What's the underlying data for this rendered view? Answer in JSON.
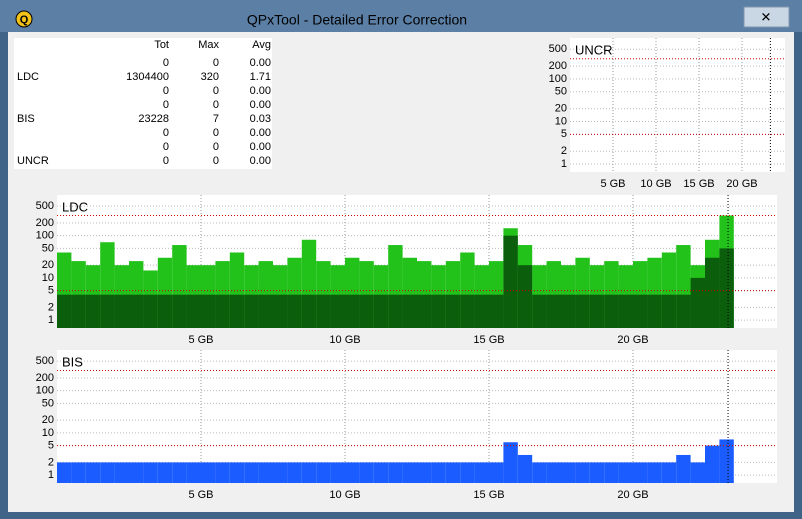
{
  "window": {
    "title": "QPxTool - Detailed Error Correction",
    "close": "✕",
    "icon": "Q"
  },
  "table": {
    "header": [
      "Tot",
      "Max",
      "Avg"
    ],
    "rows": [
      [
        null,
        "0",
        "0",
        "0.00"
      ],
      [
        "LDC",
        "1304400",
        "320",
        "1.71"
      ],
      [
        null,
        "0",
        "0",
        "0.00"
      ],
      [
        null,
        "0",
        "0",
        "0.00"
      ],
      [
        "BIS",
        "23228",
        "7",
        "0.03"
      ],
      [
        null,
        "0",
        "0",
        "0.00"
      ],
      [
        null,
        "0",
        "0",
        "0.00"
      ],
      [
        "UNCR",
        "0",
        "0",
        "0.00"
      ]
    ]
  },
  "chart_data": [
    {
      "type": "bar",
      "title": "UNCR",
      "log_y": true,
      "grid": true,
      "xlim": [
        0,
        25
      ],
      "ylim": [
        0.65,
        920
      ],
      "yticks": [
        1,
        2,
        5,
        10,
        20,
        50,
        100,
        200,
        500
      ],
      "xticks": [
        {
          "value": 5,
          "label": "5 GB"
        },
        {
          "value": 10,
          "label": "10 GB"
        },
        {
          "value": 15,
          "label": "15 GB"
        },
        {
          "value": 20,
          "label": "20 GB"
        }
      ],
      "limits": [
        300,
        5
      ],
      "data_end": 23.3,
      "x": [],
      "series": []
    },
    {
      "type": "bar",
      "title": "LDC",
      "log_y": true,
      "grid": true,
      "xlim": [
        0,
        25
      ],
      "ylim": [
        0.65,
        920
      ],
      "yticks": [
        1,
        2,
        5,
        10,
        20,
        50,
        100,
        200,
        500
      ],
      "xticks": [
        {
          "value": 5,
          "label": "5 GB"
        },
        {
          "value": 10,
          "label": "10 GB"
        },
        {
          "value": 15,
          "label": "15 GB"
        },
        {
          "value": 20,
          "label": "20 GB"
        }
      ],
      "limits": [
        300,
        5
      ],
      "data_end": 23.3,
      "x": [
        0.25,
        0.75,
        1.25,
        1.75,
        2.25,
        2.75,
        3.25,
        3.75,
        4.25,
        4.75,
        5.25,
        5.75,
        6.25,
        6.75,
        7.25,
        7.75,
        8.25,
        8.75,
        9.25,
        9.75,
        10.25,
        10.75,
        11.25,
        11.75,
        12.25,
        12.75,
        13.25,
        13.75,
        14.25,
        14.75,
        15.25,
        15.75,
        16.25,
        16.75,
        17.25,
        17.75,
        18.25,
        18.75,
        19.25,
        19.75,
        20.25,
        20.75,
        21.25,
        21.75,
        22.25,
        22.75,
        23.25
      ],
      "series": [
        {
          "color": "#22c21a",
          "values": [
            40,
            25,
            20,
            70,
            20,
            25,
            15,
            30,
            60,
            20,
            20,
            25,
            40,
            20,
            25,
            20,
            30,
            80,
            25,
            20,
            30,
            25,
            20,
            60,
            30,
            25,
            20,
            25,
            40,
            20,
            25,
            150,
            60,
            20,
            25,
            20,
            30,
            20,
            25,
            20,
            25,
            30,
            40,
            60,
            20,
            80,
            300
          ]
        },
        {
          "color": "#0b5e0b",
          "values": [
            4,
            4,
            4,
            4,
            4,
            4,
            4,
            4,
            4,
            4,
            4,
            4,
            4,
            4,
            4,
            4,
            4,
            4,
            4,
            4,
            4,
            4,
            4,
            4,
            4,
            4,
            4,
            4,
            4,
            4,
            4,
            100,
            20,
            4,
            4,
            4,
            4,
            4,
            4,
            4,
            4,
            4,
            4,
            4,
            10,
            30,
            50
          ]
        }
      ]
    },
    {
      "type": "bar",
      "title": "BIS",
      "log_y": true,
      "grid": true,
      "xlim": [
        0,
        25
      ],
      "ylim": [
        0.65,
        920
      ],
      "yticks": [
        1,
        2,
        5,
        10,
        20,
        50,
        100,
        200,
        500
      ],
      "xticks": [
        {
          "value": 5,
          "label": "5 GB"
        },
        {
          "value": 10,
          "label": "10 GB"
        },
        {
          "value": 15,
          "label": "15 GB"
        },
        {
          "value": 20,
          "label": "20 GB"
        }
      ],
      "limits": [
        300,
        5
      ],
      "data_end": 23.3,
      "x": [
        0.25,
        0.75,
        1.25,
        1.75,
        2.25,
        2.75,
        3.25,
        3.75,
        4.25,
        4.75,
        5.25,
        5.75,
        6.25,
        6.75,
        7.25,
        7.75,
        8.25,
        8.75,
        9.25,
        9.75,
        10.25,
        10.75,
        11.25,
        11.75,
        12.25,
        12.75,
        13.25,
        13.75,
        14.25,
        14.75,
        15.25,
        15.75,
        16.25,
        16.75,
        17.25,
        17.75,
        18.25,
        18.75,
        19.25,
        19.75,
        20.25,
        20.75,
        21.25,
        21.75,
        22.25,
        22.75,
        23.25
      ],
      "series": [
        {
          "color": "#1a5cff",
          "values": [
            2,
            2,
            2,
            2,
            2,
            2,
            2,
            2,
            2,
            2,
            2,
            2,
            2,
            2,
            2,
            2,
            2,
            2,
            2,
            2,
            2,
            2,
            2,
            2,
            2,
            2,
            2,
            2,
            2,
            2,
            2,
            6,
            3,
            2,
            2,
            2,
            2,
            2,
            2,
            2,
            2,
            2,
            2,
            3,
            2,
            5,
            7
          ]
        }
      ]
    }
  ]
}
